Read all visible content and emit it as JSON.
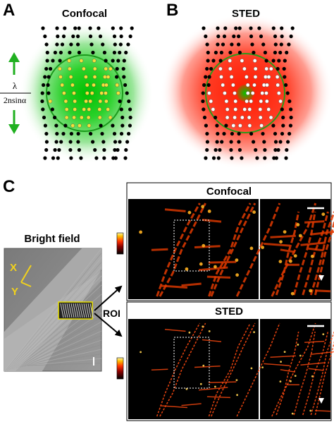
{
  "panel_a": {
    "letter": "A",
    "title": "Confocal",
    "formula_numerator": "λ",
    "formula_denominator": "2nsinα"
  },
  "panel_b": {
    "letter": "B",
    "title": "STED"
  },
  "panel_c": {
    "letter": "C",
    "bright_field_label": "Bright field",
    "axis_x": "X",
    "axis_y": "Y",
    "roi_label": "ROI",
    "confocal_title": "Confocal",
    "sted_title": "STED"
  },
  "colors": {
    "green": "#1fb51f",
    "red": "#ff2a10",
    "yellow_dot": "#f5e13a",
    "white_dot": "#ffffff",
    "black_dot": "#000000",
    "axis_yellow": "#f2d21c"
  }
}
